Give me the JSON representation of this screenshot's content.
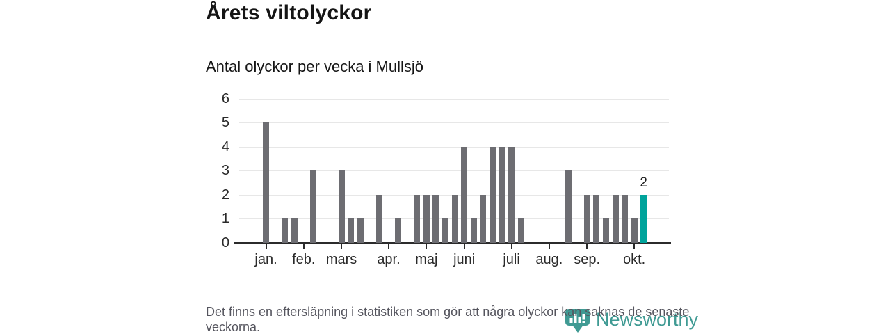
{
  "header": {
    "title": "Årets viltolyckor",
    "subtitle": "Antal olyckor per vecka i Mullsjö"
  },
  "chart_data": {
    "type": "bar",
    "title": "Årets viltolyckor",
    "subtitle": "Antal olyckor per vecka i Mullsjö",
    "xlabel": "",
    "ylabel": "",
    "ylim": [
      0,
      6
    ],
    "yticks": [
      0,
      1,
      2,
      3,
      4,
      5,
      6
    ],
    "grid": true,
    "legend": "none",
    "categories_unit": "vecka",
    "values": [
      5,
      0,
      1,
      1,
      0,
      3,
      0,
      0,
      3,
      1,
      1,
      0,
      2,
      0,
      1,
      0,
      2,
      2,
      2,
      1,
      2,
      4,
      1,
      2,
      4,
      4,
      4,
      1,
      0,
      0,
      0,
      0,
      3,
      0,
      2,
      2,
      1,
      2,
      2,
      1,
      2
    ],
    "month_ticks": [
      {
        "label": "jan.",
        "week": 0
      },
      {
        "label": "feb.",
        "week": 4
      },
      {
        "label": "mars",
        "week": 8
      },
      {
        "label": "apr.",
        "week": 13
      },
      {
        "label": "maj",
        "week": 17
      },
      {
        "label": "juni",
        "week": 21
      },
      {
        "label": "juli",
        "week": 26
      },
      {
        "label": "aug.",
        "week": 30
      },
      {
        "label": "sep.",
        "week": 34
      },
      {
        "label": "okt.",
        "week": 39
      }
    ],
    "bar_color": "#6d6d72",
    "highlight_index": 40,
    "highlight_value": 2,
    "highlight_label": "2",
    "highlight_color": "#00a39b",
    "axis_color": "#2b2b2b",
    "grid_color": "#e7e7e7"
  },
  "footer": {
    "note": "Det finns en eftersläpning i statistiken som gör att några olyckor kan saknas de senaste veckorna."
  },
  "branding": {
    "name": "Newsworthy",
    "color": "#3f9a93",
    "icon": "newsworthy-pin-barchart-icon"
  }
}
